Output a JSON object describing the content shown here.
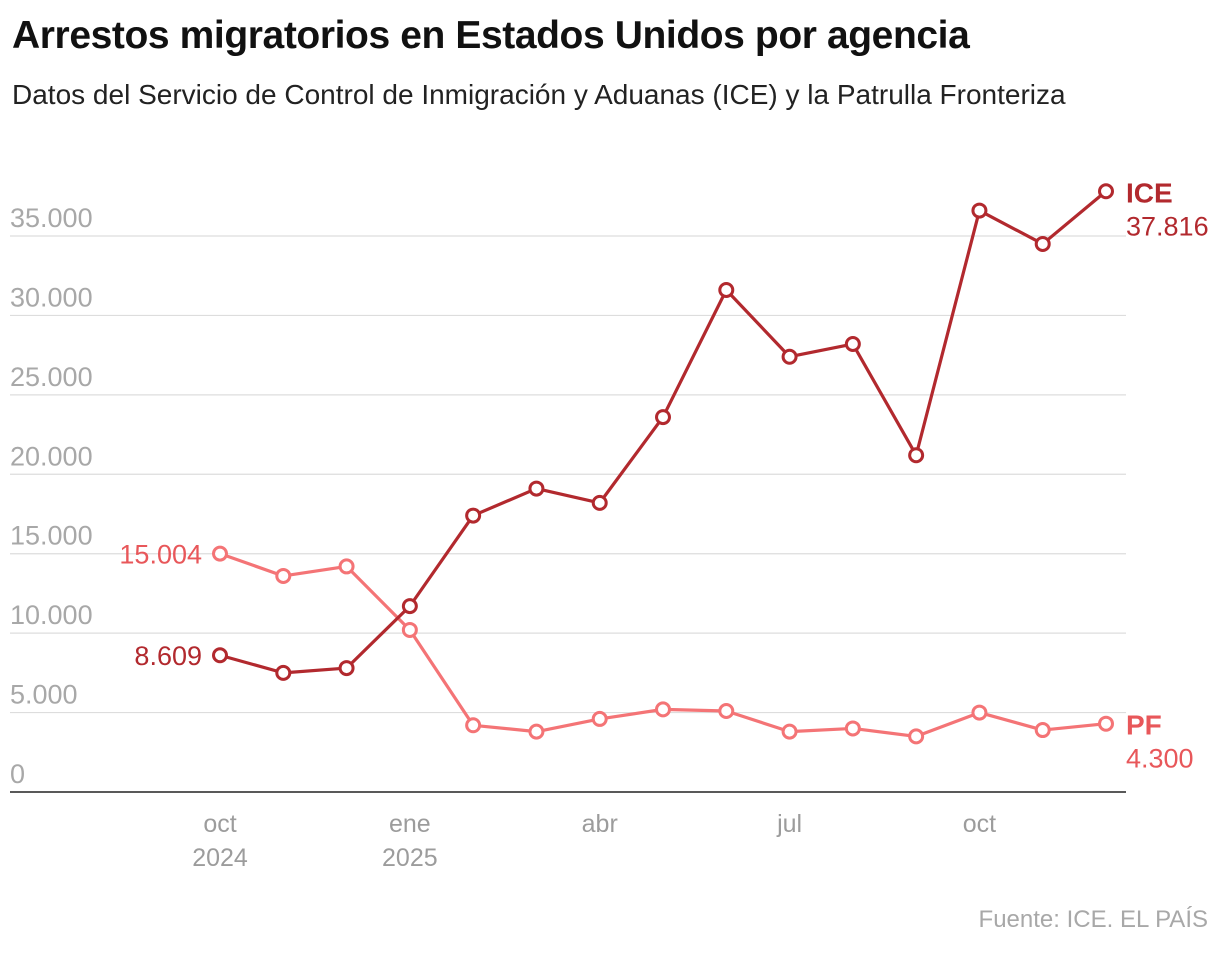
{
  "title": "Arrestos migratorios en Estados Unidos por agencia",
  "subtitle": "Datos del Servicio de Control de Inmigración y Aduanas (ICE) y la Patrulla Fronteriza",
  "source": "Fuente: ICE. EL PAÍS",
  "colors": {
    "ice": "#b2292e",
    "pf": "#f47476",
    "grid": "#dddddd",
    "axis": "#222222"
  },
  "chart_data": {
    "type": "line",
    "x": [
      "2024-10",
      "2024-11",
      "2024-12",
      "2025-01",
      "2025-02",
      "2025-03",
      "2025-04",
      "2025-05",
      "2025-06",
      "2025-07",
      "2025-08",
      "2025-09",
      "2025-10",
      "2025-11",
      "2025-12"
    ],
    "x_ticks": [
      {
        "x": "2024-10",
        "label": "oct",
        "sublabel": "2024"
      },
      {
        "x": "2025-01",
        "label": "ene",
        "sublabel": "2025"
      },
      {
        "x": "2025-04",
        "label": "abr",
        "sublabel": ""
      },
      {
        "x": "2025-07",
        "label": "jul",
        "sublabel": ""
      },
      {
        "x": "2025-10",
        "label": "oct",
        "sublabel": ""
      }
    ],
    "y_ticks": [
      {
        "value": 0,
        "label": "0"
      },
      {
        "value": 5000,
        "label": "5.000"
      },
      {
        "value": 10000,
        "label": "10.000"
      },
      {
        "value": 15000,
        "label": "15.000"
      },
      {
        "value": 20000,
        "label": "20.000"
      },
      {
        "value": 25000,
        "label": "25.000"
      },
      {
        "value": 30000,
        "label": "30.000"
      },
      {
        "value": 35000,
        "label": "35.000"
      }
    ],
    "ylim": [
      0,
      35000
    ],
    "grid": true,
    "series": [
      {
        "name": "ICE",
        "key": "ice",
        "values": [
          8609,
          7500,
          7800,
          11700,
          17400,
          19100,
          18200,
          23600,
          31600,
          27400,
          28200,
          21200,
          36600,
          34500,
          37816
        ],
        "start_label": "8.609",
        "end_label": "37.816"
      },
      {
        "name": "PF",
        "key": "pf",
        "values": [
          15004,
          13600,
          14200,
          10200,
          4200,
          3800,
          4600,
          5200,
          5100,
          3800,
          4000,
          3500,
          5000,
          3900,
          4300
        ],
        "start_label": "15.004",
        "end_label": "4.300"
      }
    ]
  }
}
